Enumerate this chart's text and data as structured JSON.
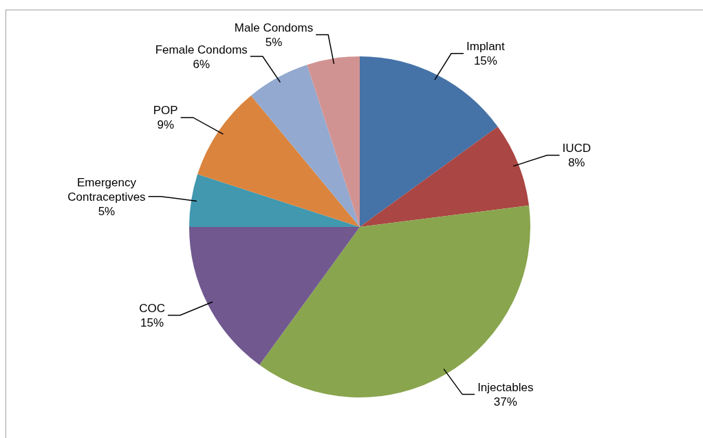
{
  "chart_data": {
    "type": "pie",
    "categories": [
      "Implant",
      "IUCD",
      "Injectables",
      "COC",
      "Emergency Contraceptives",
      "POP",
      "Female Condoms",
      "Male Condoms"
    ],
    "values": [
      15,
      8,
      37,
      15,
      5,
      9,
      6,
      5
    ],
    "value_labels": [
      "15%",
      "8%",
      "37%",
      "15%",
      "5%",
      "9%",
      "6%",
      "5%"
    ],
    "colors": [
      "#4572a7",
      "#aa4643",
      "#89a54e",
      "#71588f",
      "#4198af",
      "#db843d",
      "#93a9cf",
      "#d19392"
    ],
    "legend": false
  }
}
